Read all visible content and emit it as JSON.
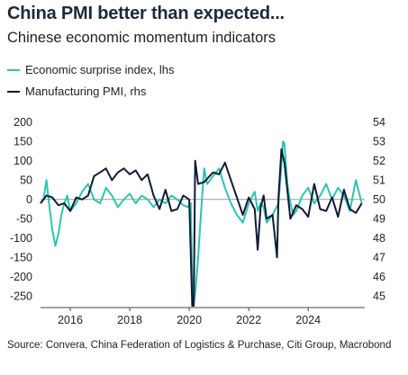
{
  "title": "China PMI better than expected...",
  "subtitle": "Chinese economic momentum indicators",
  "source": "Source: Convera,  China Federation of Logistics & Purchase, Citi Group, Macrobond",
  "colors": {
    "surprise": "#2ec4b0",
    "pmi": "#0f1b33",
    "zero_line": "#999999"
  },
  "chart_data": {
    "type": "line",
    "legend": [
      {
        "label": "Economic surprise index, lhs",
        "color": "#2ec4b0"
      },
      {
        "label": "Manufacturing PMI, rhs",
        "color": "#0f1b33"
      }
    ],
    "x_ticks": [
      "2016",
      "2018",
      "2020",
      "2022",
      "2024"
    ],
    "x_range": [
      2015.0,
      2025.9
    ],
    "y_left": {
      "range": [
        -275,
        225
      ],
      "ticks": [
        200,
        150,
        100,
        50,
        0,
        -50,
        -100,
        -150,
        -200,
        -250
      ]
    },
    "y_right": {
      "range": [
        44.5,
        54.5
      ],
      "ticks": [
        54,
        53,
        52,
        51,
        50,
        49,
        48,
        47,
        46,
        45
      ]
    },
    "series": [
      {
        "name": "Economic surprise index, lhs",
        "axis": "left",
        "x": [
          2015.0,
          2015.1,
          2015.2,
          2015.3,
          2015.4,
          2015.5,
          2015.6,
          2015.7,
          2015.8,
          2015.9,
          2016.0,
          2016.2,
          2016.4,
          2016.6,
          2016.8,
          2017.0,
          2017.2,
          2017.4,
          2017.6,
          2017.8,
          2018.0,
          2018.2,
          2018.4,
          2018.6,
          2018.8,
          2019.0,
          2019.2,
          2019.4,
          2019.6,
          2019.8,
          2019.95,
          2020.05,
          2020.1,
          2020.15,
          2020.2,
          2020.3,
          2020.4,
          2020.5,
          2020.6,
          2020.8,
          2021.0,
          2021.2,
          2021.4,
          2021.6,
          2021.8,
          2022.0,
          2022.2,
          2022.3,
          2022.4,
          2022.5,
          2022.6,
          2022.8,
          2023.0,
          2023.1,
          2023.15,
          2023.2,
          2023.3,
          2023.4,
          2023.5,
          2023.6,
          2023.8,
          2024.0,
          2024.2,
          2024.4,
          2024.6,
          2024.8,
          2025.0,
          2025.2,
          2025.4,
          2025.6,
          2025.8
        ],
        "y": [
          -10,
          0,
          50,
          -20,
          -80,
          -120,
          -90,
          -40,
          -10,
          10,
          -30,
          -10,
          20,
          40,
          0,
          -10,
          30,
          10,
          -20,
          0,
          15,
          -10,
          10,
          0,
          -20,
          0,
          -10,
          10,
          0,
          -15,
          -20,
          -10,
          -200,
          -270,
          -245,
          -150,
          -30,
          80,
          40,
          60,
          80,
          30,
          -10,
          -40,
          -60,
          -10,
          20,
          -30,
          -10,
          -20,
          -60,
          -40,
          -10,
          90,
          150,
          145,
          40,
          -10,
          -40,
          -30,
          10,
          30,
          -10,
          10,
          40,
          0,
          30,
          10,
          -30,
          50,
          -10
        ]
      },
      {
        "name": "Manufacturing PMI, rhs",
        "axis": "right",
        "x": [
          2015.0,
          2015.2,
          2015.4,
          2015.6,
          2015.8,
          2016.0,
          2016.2,
          2016.4,
          2016.6,
          2016.8,
          2017.0,
          2017.2,
          2017.4,
          2017.6,
          2017.8,
          2018.0,
          2018.2,
          2018.4,
          2018.6,
          2018.8,
          2019.0,
          2019.2,
          2019.4,
          2019.6,
          2019.8,
          2020.0,
          2020.1,
          2020.15,
          2020.2,
          2020.3,
          2020.5,
          2020.8,
          2021.0,
          2021.2,
          2021.4,
          2021.6,
          2021.8,
          2022.0,
          2022.2,
          2022.3,
          2022.4,
          2022.5,
          2022.6,
          2022.8,
          2022.95,
          2023.0,
          2023.1,
          2023.2,
          2023.4,
          2023.6,
          2023.8,
          2024.0,
          2024.2,
          2024.4,
          2024.6,
          2024.8,
          2025.0,
          2025.2,
          2025.4,
          2025.6,
          2025.8
        ],
        "y": [
          49.8,
          50.2,
          50.1,
          49.7,
          49.8,
          49.4,
          50.1,
          50.0,
          50.2,
          51.2,
          51.4,
          51.6,
          51.0,
          51.4,
          51.6,
          51.3,
          51.5,
          51.0,
          51.3,
          50.2,
          49.5,
          50.5,
          49.4,
          49.5,
          50.2,
          50.0,
          35.7,
          44.0,
          52.0,
          50.8,
          50.9,
          51.4,
          51.3,
          51.9,
          51.0,
          50.1,
          49.2,
          50.1,
          49.5,
          47.4,
          49.6,
          50.2,
          49.0,
          49.2,
          47.0,
          50.1,
          52.6,
          51.9,
          49.0,
          49.7,
          49.5,
          49.1,
          50.8,
          49.5,
          49.4,
          50.1,
          49.1,
          50.5,
          49.5,
          49.3,
          49.8
        ]
      }
    ]
  }
}
